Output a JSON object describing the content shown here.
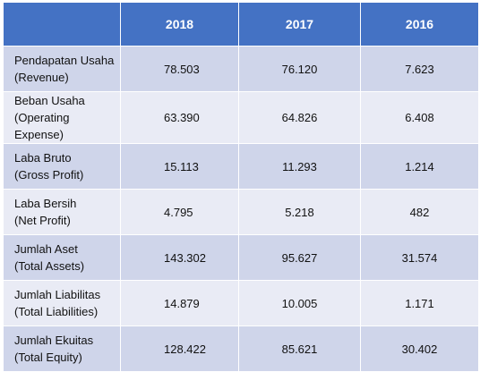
{
  "table": {
    "headers": [
      "",
      "2018",
      "2017",
      "2016"
    ],
    "rows": [
      {
        "label_1": "Pendapatan Usaha",
        "label_2": "(Revenue)",
        "v2018": "78.503",
        "v2017": "76.120",
        "v2016": "7.623"
      },
      {
        "label_1": "Beban Usaha",
        "label_2": "(Operating Expense)",
        "v2018": "63.390",
        "v2017": "64.826",
        "v2016": "6.408"
      },
      {
        "label_1": "Laba Bruto",
        "label_2": "(Gross Profit)",
        "v2018": "15.113",
        "v2017": "11.293",
        "v2016": "1.214"
      },
      {
        "label_1": "Laba Bersih",
        "label_2": "(Net Profit)",
        "v2018": "4.795",
        "v2017": "5.218",
        "v2016": "482"
      },
      {
        "label_1": "Jumlah Aset",
        "label_2": "(Total Assets)",
        "v2018": "143.302",
        "v2017": "95.627",
        "v2016": "31.574"
      },
      {
        "label_1": "Jumlah Liabilitas",
        "label_2": "(Total Liabilities)",
        "v2018": "14.879",
        "v2017": "10.005",
        "v2016": "1.171"
      },
      {
        "label_1": "Jumlah Ekuitas",
        "label_2": "(Total Equity)",
        "v2018": "128.422",
        "v2017": "85.621",
        "v2016": "30.402"
      }
    ]
  },
  "colors": {
    "header_bg": "#4472c4",
    "row_dark": "#cfd5ea",
    "row_light": "#e9ebf5"
  }
}
